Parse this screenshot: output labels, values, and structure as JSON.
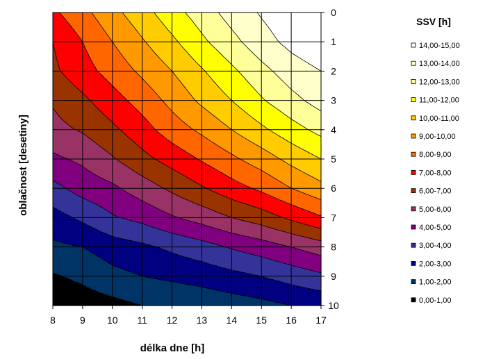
{
  "chart_data": {
    "type": "heatmap",
    "subtype": "filled-contour",
    "xlabel": "délka dne [h]",
    "ylabel": "oblačnost [desetiny]",
    "x": [
      8,
      9,
      10,
      11,
      12,
      13,
      14,
      15,
      16,
      17
    ],
    "y": [
      0,
      1,
      2,
      3,
      4,
      5,
      6,
      7,
      8,
      9,
      10
    ],
    "xlim": [
      8,
      17
    ],
    "ylim": [
      0,
      10
    ],
    "y_axis_side": "right",
    "y_axis_reversed": true,
    "grid": true,
    "legend": {
      "title": "SSV [h]",
      "position": "right",
      "entries": [
        {
          "label": "14,00-15,00",
          "color": "#FFFFFF"
        },
        {
          "label": "13,00-14,00",
          "color": "#FFFFCC"
        },
        {
          "label": "12,00-13,00",
          "color": "#FFFF99"
        },
        {
          "label": "11,00-12,00",
          "color": "#FFFF00"
        },
        {
          "label": "10,00-11,00",
          "color": "#FFCC00"
        },
        {
          "label": "9,00-10,00",
          "color": "#FF9900"
        },
        {
          "label": "8,00-9,00",
          "color": "#FF6600"
        },
        {
          "label": "7,00-8,00",
          "color": "#FF0000"
        },
        {
          "label": "6,00-7,00",
          "color": "#993300"
        },
        {
          "label": "5,00-6,00",
          "color": "#993366"
        },
        {
          "label": "4,00-5,00",
          "color": "#800080"
        },
        {
          "label": "3,00-4,00",
          "color": "#333399"
        },
        {
          "label": "2,00-3,00",
          "color": "#000080"
        },
        {
          "label": "1,00-2,00",
          "color": "#003366"
        },
        {
          "label": "0,00-1,00",
          "color": "#000000"
        }
      ]
    },
    "values": [
      [
        7.8,
        8.7,
        9.7,
        10.6,
        11.6,
        12.5,
        13.4,
        14.1,
        14.7,
        15.0
      ],
      [
        7.0,
        8.0,
        9.0,
        9.9,
        10.8,
        11.8,
        12.7,
        13.6,
        14.3,
        14.8
      ],
      [
        6.8,
        7.6,
        8.4,
        9.2,
        10.0,
        10.9,
        11.8,
        12.7,
        13.5,
        14.0
      ],
      [
        6.1,
        6.8,
        7.6,
        8.4,
        9.3,
        10.2,
        11.0,
        11.9,
        12.7,
        13.4
      ],
      [
        5.7,
        6.1,
        6.8,
        7.6,
        8.5,
        9.2,
        10.0,
        10.8,
        11.6,
        12.3
      ],
      [
        4.8,
        5.2,
        5.9,
        6.7,
        7.4,
        8.1,
        8.8,
        9.5,
        10.3,
        11.0
      ],
      [
        3.7,
        4.4,
        4.8,
        5.5,
        6.2,
        6.9,
        7.6,
        8.2,
        9.0,
        9.7
      ],
      [
        2.6,
        3.2,
        3.9,
        4.3,
        4.9,
        5.4,
        6.0,
        6.5,
        7.2,
        7.9
      ],
      [
        1.8,
        2.0,
        2.5,
        2.8,
        3.2,
        3.6,
        4.1,
        4.5,
        5.0,
        5.5
      ],
      [
        0.9,
        1.2,
        1.7,
        2.0,
        2.2,
        2.4,
        2.7,
        3.0,
        3.4,
        3.8
      ],
      [
        0.3,
        0.5,
        0.7,
        1.0,
        1.1,
        1.3,
        1.5,
        1.7,
        2.0,
        2.2
      ]
    ]
  }
}
